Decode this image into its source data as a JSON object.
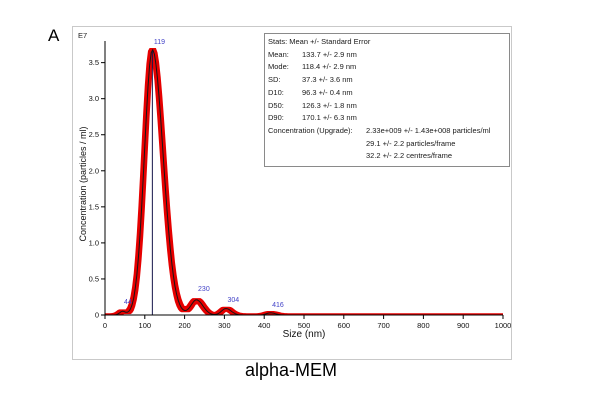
{
  "panel_label": "A",
  "caption": "alpha-MEM",
  "axis": {
    "y_unit": "E7",
    "ylabel": "Concentration (particles / ml)",
    "xlabel": "Size (nm)"
  },
  "stats_box": {
    "title": "Stats: Mean +/- Standard Error",
    "rows": [
      {
        "label": "Mean:",
        "value": "133.7 +/- 2.9 nm"
      },
      {
        "label": "Mode:",
        "value": "118.4 +/- 2.9 nm"
      },
      {
        "label": "SD:",
        "value": "37.3 +/- 3.6 nm"
      },
      {
        "label": "D10:",
        "value": "96.3 +/- 0.4 nm"
      },
      {
        "label": "D50:",
        "value": "126.3 +/- 1.8 nm"
      },
      {
        "label": "D90:",
        "value": "170.1 +/- 6.3 nm"
      }
    ],
    "concentration": {
      "label": "Concentration (Upgrade):",
      "value": "2.33e+009 +/- 1.43e+008 particles/ml",
      "lines": [
        "29.1 +/- 2.2 particles/frame",
        "32.2 +/- 2.2 centres/frame"
      ]
    }
  },
  "chart_data": {
    "type": "area",
    "title": "",
    "xlabel": "Size (nm)",
    "ylabel": "Concentration (particles / ml)",
    "y_unit": "E7",
    "xlim": [
      0,
      1000
    ],
    "ylim": [
      0,
      3.8
    ],
    "x_ticks": [
      "0",
      "100",
      "200",
      "300",
      "400",
      "500",
      "600",
      "700",
      "800",
      "900",
      "1000"
    ],
    "y_ticks": [
      "0",
      "0.5",
      "1.0",
      "1.5",
      "2.0",
      "2.5",
      "3.0",
      "3.5"
    ],
    "band_color": "#e60000",
    "line_color": "#151515",
    "annotation_color": "#4343c8",
    "mode_line_x": 119,
    "curve_components": [
      {
        "m": 119,
        "a": 3.68,
        "sl": 20,
        "sr": 27
      },
      {
        "m": 44,
        "a": 0.05,
        "sl": 7,
        "sr": 7
      },
      {
        "m": 230,
        "a": 0.21,
        "sl": 14,
        "sr": 16
      },
      {
        "m": 304,
        "a": 0.09,
        "sl": 11,
        "sr": 13
      },
      {
        "m": 416,
        "a": 0.03,
        "sl": 10,
        "sr": 12
      }
    ],
    "annotations": [
      {
        "x": 44,
        "y": 0.13,
        "label": "44"
      },
      {
        "x": 119,
        "y": 3.74,
        "label": "119"
      },
      {
        "x": 230,
        "y": 0.31,
        "label": "230"
      },
      {
        "x": 304,
        "y": 0.16,
        "label": "304"
      },
      {
        "x": 416,
        "y": 0.09,
        "label": "416"
      }
    ]
  }
}
